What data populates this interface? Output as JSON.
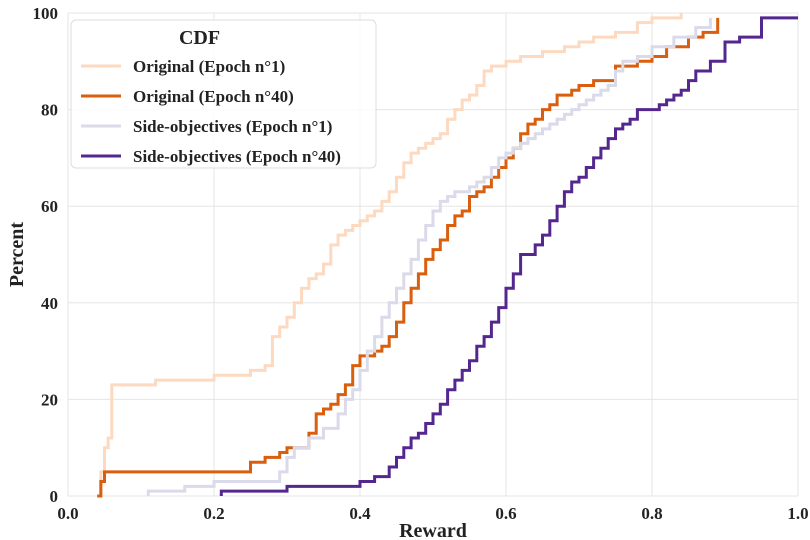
{
  "chart_data": {
    "type": "line",
    "title": "",
    "xlabel": "Reward",
    "ylabel": "Percent",
    "xlim": [
      0.0,
      1.0
    ],
    "ylim": [
      0,
      100
    ],
    "x_ticks": [
      "0.0",
      "0.2",
      "0.4",
      "0.6",
      "0.8",
      "1.0"
    ],
    "y_ticks": [
      "0",
      "20",
      "40",
      "60",
      "80",
      "100"
    ],
    "grid": true,
    "legend": {
      "title": "CDF",
      "placement": "top-left"
    },
    "series": [
      {
        "name": "Original (Epoch n°1)",
        "color": "#fdd9c0",
        "x": [
          0.04,
          0.045,
          0.05,
          0.055,
          0.06,
          0.09,
          0.12,
          0.15,
          0.18,
          0.2,
          0.22,
          0.25,
          0.27,
          0.28,
          0.29,
          0.3,
          0.31,
          0.32,
          0.33,
          0.34,
          0.35,
          0.36,
          0.37,
          0.38,
          0.39,
          0.4,
          0.41,
          0.42,
          0.43,
          0.44,
          0.45,
          0.46,
          0.47,
          0.48,
          0.49,
          0.5,
          0.51,
          0.52,
          0.53,
          0.54,
          0.55,
          0.56,
          0.57,
          0.58,
          0.6,
          0.62,
          0.65,
          0.68,
          0.7,
          0.72,
          0.75,
          0.78,
          0.8,
          0.84
        ],
        "y": [
          0,
          5,
          10,
          12,
          23,
          23,
          24,
          24,
          24,
          25,
          25,
          26,
          27,
          33,
          35,
          37,
          40,
          43,
          45,
          46,
          48,
          52,
          54,
          55,
          56,
          57,
          58,
          59,
          61,
          63,
          66,
          69,
          71,
          72,
          73,
          74,
          75,
          78,
          80,
          82,
          83,
          85,
          88,
          89,
          90,
          91,
          92,
          93,
          94,
          95,
          96,
          98,
          99,
          100
        ]
      },
      {
        "name": "Original (Epoch n°40)",
        "color": "#d95f0e",
        "x": [
          0.04,
          0.045,
          0.05,
          0.24,
          0.25,
          0.27,
          0.29,
          0.3,
          0.32,
          0.33,
          0.34,
          0.35,
          0.36,
          0.37,
          0.38,
          0.39,
          0.4,
          0.41,
          0.42,
          0.43,
          0.44,
          0.45,
          0.46,
          0.47,
          0.48,
          0.49,
          0.5,
          0.51,
          0.52,
          0.53,
          0.54,
          0.55,
          0.56,
          0.57,
          0.58,
          0.59,
          0.6,
          0.61,
          0.62,
          0.63,
          0.64,
          0.65,
          0.66,
          0.67,
          0.69,
          0.7,
          0.72,
          0.75,
          0.78,
          0.8,
          0.82,
          0.85,
          0.87,
          0.89
        ],
        "y": [
          0,
          3,
          5,
          5,
          7,
          8,
          9,
          10,
          10,
          13,
          17,
          18,
          19,
          21,
          23,
          27,
          29,
          29,
          30,
          31,
          33,
          36,
          40,
          43,
          46,
          49,
          51,
          53,
          56,
          58,
          59,
          62,
          63,
          64,
          66,
          68,
          70,
          72,
          75,
          77,
          78,
          80,
          81,
          83,
          84,
          85,
          86,
          89,
          90,
          91,
          93,
          95,
          96,
          99
        ]
      },
      {
        "name": "Side-objectives (Epoch n°1)",
        "color": "#dadaeb",
        "x": [
          0.11,
          0.14,
          0.16,
          0.18,
          0.2,
          0.25,
          0.29,
          0.3,
          0.31,
          0.33,
          0.35,
          0.37,
          0.38,
          0.39,
          0.4,
          0.41,
          0.42,
          0.43,
          0.44,
          0.45,
          0.46,
          0.47,
          0.48,
          0.49,
          0.5,
          0.51,
          0.52,
          0.53,
          0.54,
          0.55,
          0.56,
          0.57,
          0.58,
          0.59,
          0.6,
          0.61,
          0.62,
          0.63,
          0.64,
          0.65,
          0.66,
          0.67,
          0.68,
          0.69,
          0.7,
          0.71,
          0.72,
          0.73,
          0.74,
          0.75,
          0.76,
          0.78,
          0.8,
          0.83,
          0.86,
          0.88
        ],
        "y": [
          1,
          1,
          2,
          2,
          3,
          3,
          5,
          8,
          10,
          12,
          14,
          17,
          20,
          22,
          26,
          30,
          33,
          37,
          40,
          43,
          46,
          49,
          53,
          56,
          59,
          61,
          62,
          63,
          63,
          64,
          65,
          66,
          68,
          70,
          71,
          72,
          73,
          74,
          75,
          76,
          77,
          78,
          79,
          80,
          81,
          82,
          83,
          84,
          85,
          88,
          90,
          91,
          93,
          95,
          97,
          99
        ]
      },
      {
        "name": "Side-objectives (Epoch n°40)",
        "color": "#54278f",
        "x": [
          0.21,
          0.25,
          0.3,
          0.35,
          0.38,
          0.4,
          0.42,
          0.44,
          0.45,
          0.46,
          0.47,
          0.48,
          0.49,
          0.5,
          0.51,
          0.52,
          0.53,
          0.54,
          0.55,
          0.56,
          0.57,
          0.58,
          0.59,
          0.6,
          0.61,
          0.62,
          0.63,
          0.64,
          0.65,
          0.66,
          0.67,
          0.68,
          0.69,
          0.7,
          0.71,
          0.72,
          0.73,
          0.74,
          0.75,
          0.76,
          0.77,
          0.78,
          0.79,
          0.8,
          0.81,
          0.82,
          0.83,
          0.84,
          0.85,
          0.86,
          0.88,
          0.9,
          0.92,
          0.95,
          1.0
        ],
        "y": [
          1,
          1,
          2,
          2,
          2,
          3,
          4,
          6,
          8,
          10,
          12,
          13,
          15,
          17,
          19,
          22,
          24,
          26,
          28,
          31,
          33,
          36,
          39,
          43,
          46,
          50,
          50,
          52,
          54,
          57,
          60,
          63,
          65,
          66,
          68,
          70,
          72,
          74,
          76,
          77,
          78,
          80,
          80,
          80,
          81,
          82,
          83,
          84,
          86,
          88,
          90,
          94,
          95,
          99,
          99
        ]
      }
    ]
  }
}
